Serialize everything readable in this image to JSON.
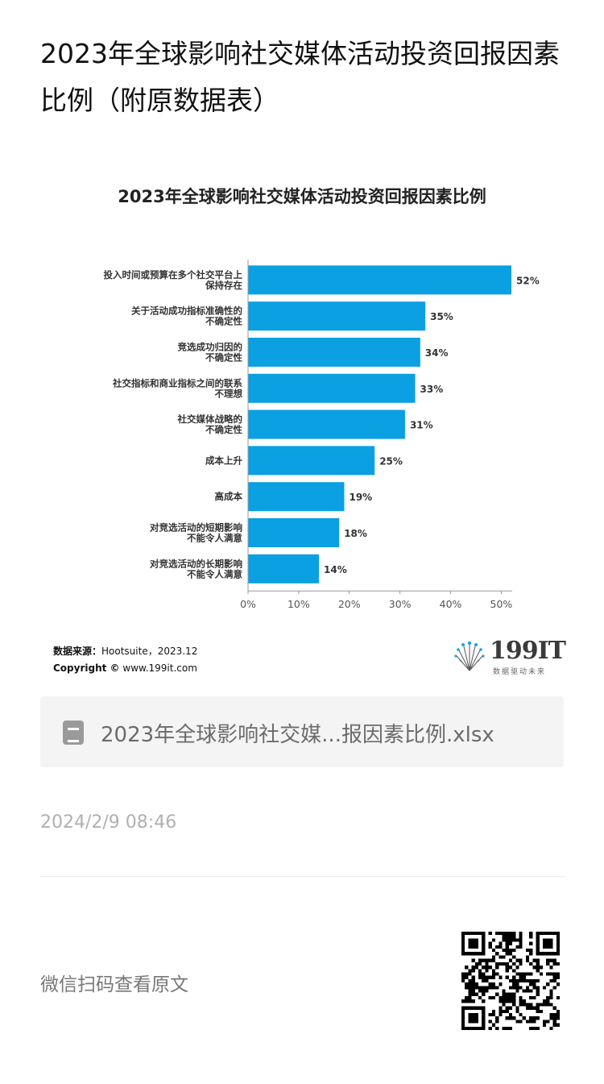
{
  "article": {
    "title": "2023年全球影响社交媒体活动投资回报因素比例（附原数据表）",
    "file_name": "2023年全球影响社交媒...报因素比例.xlsx",
    "timestamp": "2024/2/9 08:46",
    "scan_label": "微信扫码查看原文"
  },
  "source": {
    "source_label": "数据来源：",
    "source_value": "Hootsuite，2023.12",
    "copyright_label": "Copyright ©",
    "copyright_value": "www.199it.com"
  },
  "logo": {
    "text": "199IT",
    "tagline": "数据驱动未来"
  },
  "icons": {
    "file": "spreadsheet-file-icon",
    "qr": "qr-code"
  },
  "colors": {
    "bar": "#0aa0e2",
    "axis": "#999999"
  },
  "chart_data": {
    "type": "bar",
    "orientation": "horizontal",
    "title": "2023年全球影响社交媒体活动投资回报因素比例",
    "categories": [
      [
        "投入时间或预算在多个社交平台上",
        "保持存在"
      ],
      [
        "关于活动成功指标准确性的",
        "不确定性"
      ],
      [
        "竞选成功归因的",
        "不确定性"
      ],
      [
        "社交指标和商业指标之间的联系",
        "不理想"
      ],
      [
        "社交媒体战略的",
        "不确定性"
      ],
      [
        "成本上升"
      ],
      [
        "高成本"
      ],
      [
        "对竞选活动的短期影响",
        "不能令人满意"
      ],
      [
        "对竞选活动的长期影响",
        "不能令人满意"
      ]
    ],
    "values": [
      52,
      35,
      34,
      33,
      31,
      25,
      19,
      18,
      14
    ],
    "value_labels": [
      "52%",
      "35%",
      "34%",
      "33%",
      "31%",
      "25%",
      "19%",
      "18%",
      "14%"
    ],
    "xlim": [
      0,
      52
    ],
    "xticks": [
      0,
      10,
      20,
      30,
      40,
      50
    ],
    "xtick_labels": [
      "0%",
      "10%",
      "20%",
      "30%",
      "40%",
      "50%"
    ],
    "grid": false,
    "legend": "none"
  }
}
